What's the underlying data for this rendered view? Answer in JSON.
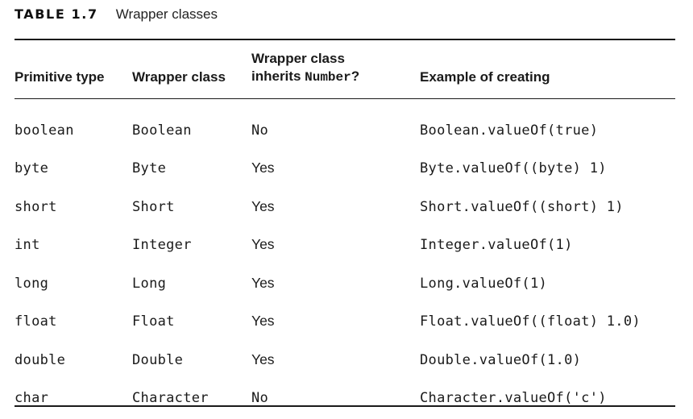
{
  "caption": {
    "label": "TABLE 1.7",
    "title": "Wrapper classes"
  },
  "table": {
    "headers": {
      "primitive": "Primitive type",
      "wrapper": "Wrapper class",
      "inherits_line1": "Wrapper class",
      "inherits_prefix": "inherits ",
      "inherits_code": "Number",
      "inherits_suffix": "?",
      "example": "Example of creating"
    },
    "rows": [
      {
        "primitive": "boolean",
        "wrapper": "Boolean",
        "inherits": "No",
        "example": "Boolean.valueOf(true)"
      },
      {
        "primitive": "byte",
        "wrapper": "Byte",
        "inherits": "Yes",
        "example": "Byte.valueOf((byte) 1)"
      },
      {
        "primitive": "short",
        "wrapper": "Short",
        "inherits": "Yes",
        "example": "Short.valueOf((short) 1)"
      },
      {
        "primitive": "int",
        "wrapper": "Integer",
        "inherits": "Yes",
        "example": "Integer.valueOf(1)"
      },
      {
        "primitive": "long",
        "wrapper": "Long",
        "inherits": "Yes",
        "example": "Long.valueOf(1)"
      },
      {
        "primitive": "float",
        "wrapper": "Float",
        "inherits": "Yes",
        "example": "Float.valueOf((float) 1.0)"
      },
      {
        "primitive": "double",
        "wrapper": "Double",
        "inherits": "Yes",
        "example": "Double.valueOf(1.0)"
      },
      {
        "primitive": "char",
        "wrapper": "Character",
        "inherits": "No",
        "example": "Character.valueOf('c')"
      }
    ]
  }
}
